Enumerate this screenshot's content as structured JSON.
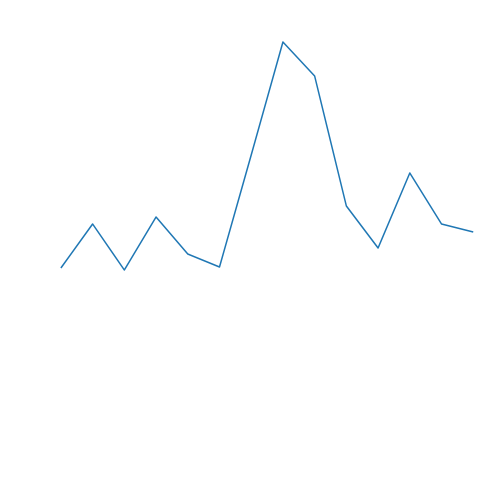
{
  "chart_data": {
    "type": "line",
    "x": [
      0,
      1,
      2,
      3,
      4,
      5,
      6,
      7,
      8,
      9,
      10,
      11,
      12,
      13
    ],
    "series": [
      {
        "color": "#1f77b4",
        "values": [
          236,
          280,
          234,
          287,
          250,
          237,
          349,
          462,
          428,
          298,
          256,
          331,
          280,
          272
        ]
      }
    ],
    "xlim": [
      -1.92,
      13.97
    ],
    "ylim": [
      0,
      504
    ]
  }
}
